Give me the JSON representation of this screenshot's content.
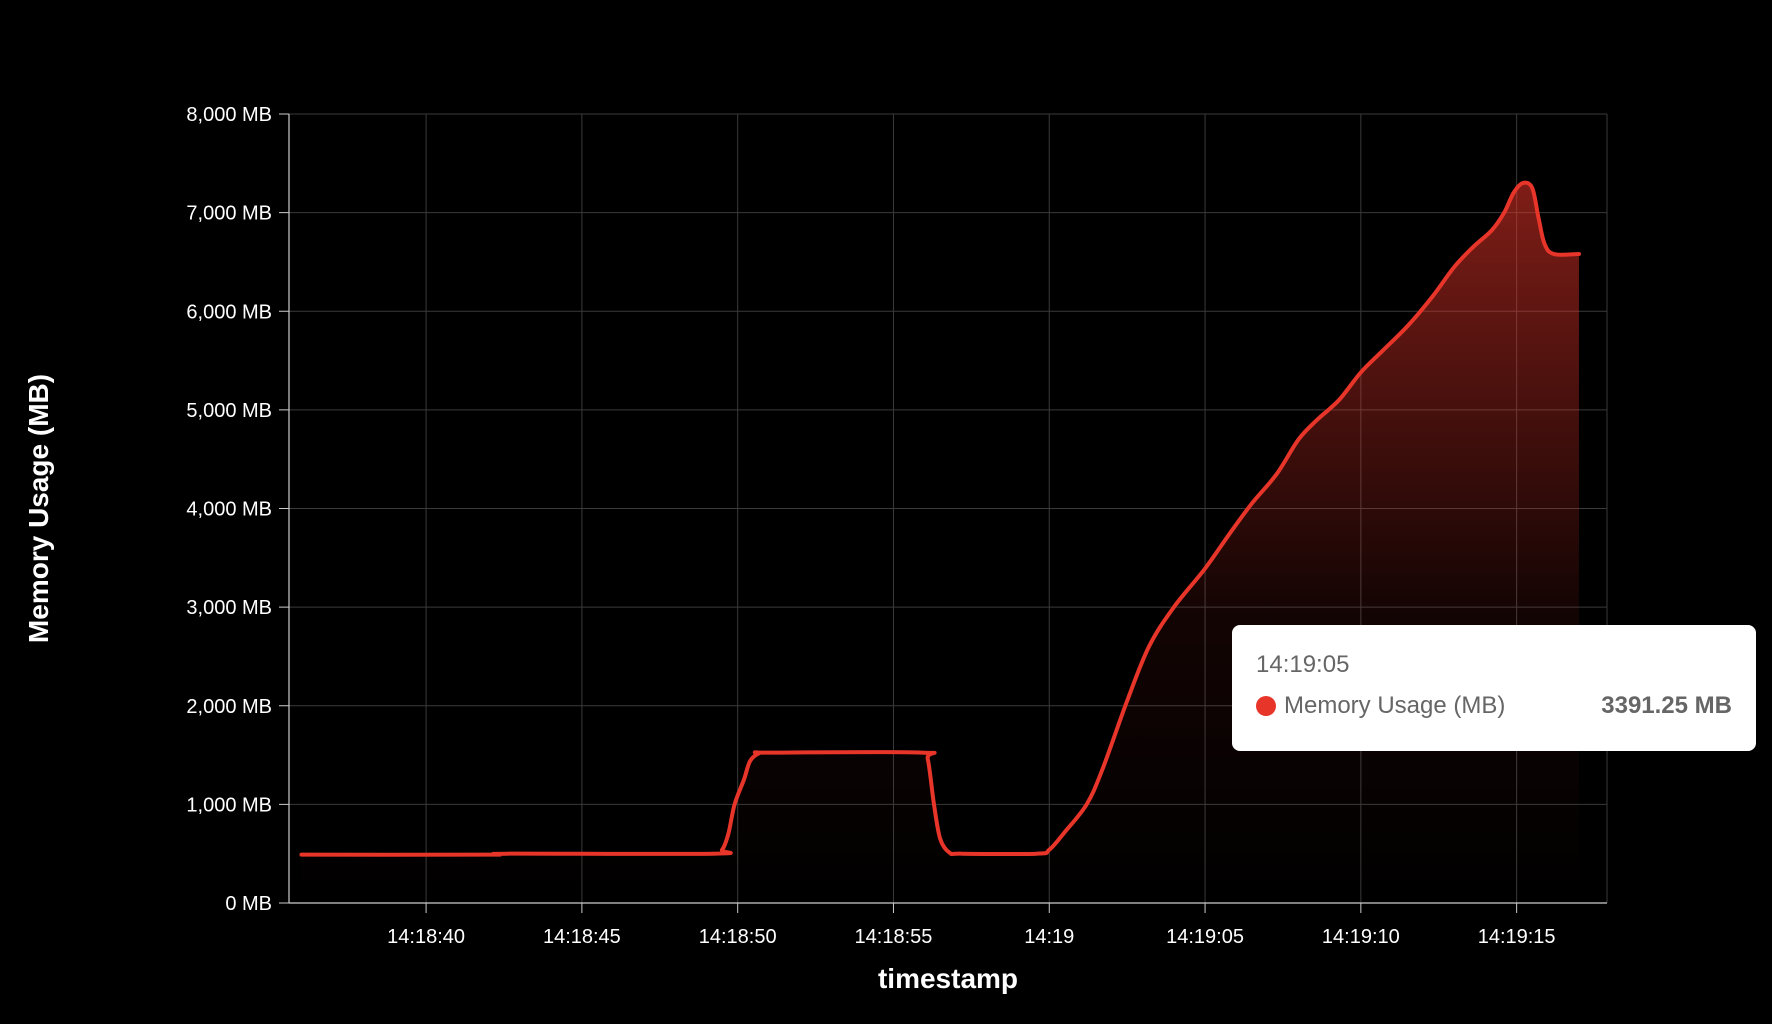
{
  "chart_data": {
    "type": "area",
    "xlabel": "timestamp",
    "ylabel": "Memory Usage (MB)",
    "y_unit": "MB",
    "ylim": [
      0,
      8000
    ],
    "xlim": [
      "14:18:35.6",
      "14:19:17.9"
    ],
    "y_ticks": [
      "0 MB",
      "1,000 MB",
      "2,000 MB",
      "3,000 MB",
      "4,000 MB",
      "5,000 MB",
      "6,000 MB",
      "7,000 MB",
      "8,000 MB"
    ],
    "x_ticks": [
      {
        "t": "14:18:40",
        "label": "14:18:40"
      },
      {
        "t": "14:18:45",
        "label": "14:18:45"
      },
      {
        "t": "14:18:50",
        "label": "14:18:50"
      },
      {
        "t": "14:18:55",
        "label": "14:18:55"
      },
      {
        "t": "14:19:00",
        "label": "14:19"
      },
      {
        "t": "14:19:05",
        "label": "14:19:05"
      },
      {
        "t": "14:19:10",
        "label": "14:19:10"
      },
      {
        "t": "14:19:15",
        "label": "14:19:15"
      }
    ],
    "grid": true,
    "series": [
      {
        "name": "Memory Usage (MB)",
        "color": "#e8352a",
        "points": [
          [
            "14:18:36.0",
            490
          ],
          [
            "14:18:42.0",
            490
          ],
          [
            "14:18:42.6",
            500
          ],
          [
            "14:18:49.2",
            500
          ],
          [
            "14:18:49.5",
            540
          ],
          [
            "14:18:49.7",
            700
          ],
          [
            "14:18:49.9",
            1000
          ],
          [
            "14:18:50.2",
            1250
          ],
          [
            "14:18:50.4",
            1440
          ],
          [
            "14:18:50.7",
            1520
          ],
          [
            "14:18:51.0",
            1525
          ],
          [
            "14:18:55.9",
            1525
          ],
          [
            "14:18:56.1",
            1460
          ],
          [
            "14:18:56.3",
            1000
          ],
          [
            "14:18:56.5",
            650
          ],
          [
            "14:18:56.8",
            510
          ],
          [
            "14:18:57.2",
            500
          ],
          [
            "14:18:59.6",
            500
          ],
          [
            "14:19:00.0",
            540
          ],
          [
            "14:19:00.5",
            720
          ],
          [
            "14:19:01.2",
            1000
          ],
          [
            "14:19:01.7",
            1350
          ],
          [
            "14:19:02.5",
            2050
          ],
          [
            "14:19:03.2",
            2600
          ],
          [
            "14:19:04.0",
            3000
          ],
          [
            "14:19:05.0",
            3391.25
          ],
          [
            "14:19:05.8",
            3750
          ],
          [
            "14:19:06.5",
            4050
          ],
          [
            "14:19:07.3",
            4350
          ],
          [
            "14:19:08.0",
            4700
          ],
          [
            "14:19:08.6",
            4900
          ],
          [
            "14:19:09.3",
            5100
          ],
          [
            "14:19:10.0",
            5380
          ],
          [
            "14:19:10.7",
            5600
          ],
          [
            "14:19:11.5",
            5850
          ],
          [
            "14:19:12.3",
            6150
          ],
          [
            "14:19:13.0",
            6450
          ],
          [
            "14:19:13.6",
            6650
          ],
          [
            "14:19:14.2",
            6820
          ],
          [
            "14:19:14.6",
            7000
          ],
          [
            "14:19:14.9",
            7200
          ],
          [
            "14:19:15.2",
            7300
          ],
          [
            "14:19:15.5",
            7250
          ],
          [
            "14:19:15.7",
            6950
          ],
          [
            "14:19:15.9",
            6680
          ],
          [
            "14:19:16.2",
            6580
          ],
          [
            "14:19:17.0",
            6580
          ]
        ]
      }
    ],
    "tooltip": {
      "time": "14:19:05",
      "series_name": "Memory Usage (MB)",
      "value": "3391.25 MB"
    }
  }
}
